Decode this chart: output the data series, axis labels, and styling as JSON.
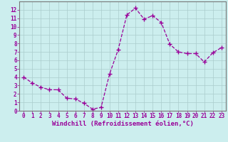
{
  "x": [
    0,
    1,
    2,
    3,
    4,
    5,
    6,
    7,
    8,
    9,
    10,
    11,
    12,
    13,
    14,
    15,
    16,
    17,
    18,
    19,
    20,
    21,
    22,
    23
  ],
  "y": [
    4.0,
    3.3,
    2.8,
    2.5,
    2.5,
    1.5,
    1.4,
    0.9,
    0.2,
    0.4,
    4.4,
    7.3,
    11.4,
    12.2,
    10.9,
    11.3,
    10.5,
    7.9,
    7.0,
    6.8,
    6.8,
    5.8,
    6.9,
    7.5
  ],
  "line_color": "#990099",
  "marker": "+",
  "marker_size": 4,
  "marker_color": "#990099",
  "bg_color": "#cceeee",
  "grid_color": "#aacccc",
  "xlabel": "Windchill (Refroidissement éolien,°C)",
  "xlabel_color": "#990099",
  "tick_color": "#990099",
  "xlim": [
    -0.5,
    23.5
  ],
  "ylim": [
    0,
    13
  ],
  "xticks": [
    0,
    1,
    2,
    3,
    4,
    5,
    6,
    7,
    8,
    9,
    10,
    11,
    12,
    13,
    14,
    15,
    16,
    17,
    18,
    19,
    20,
    21,
    22,
    23
  ],
  "yticks": [
    0,
    1,
    2,
    3,
    4,
    5,
    6,
    7,
    8,
    9,
    10,
    11,
    12
  ],
  "tick_fontsize": 5.5,
  "xlabel_fontsize": 6.5,
  "spine_color": "#777777"
}
